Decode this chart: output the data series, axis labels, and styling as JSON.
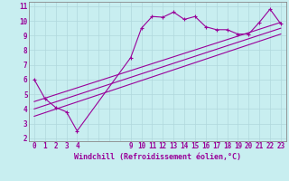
{
  "xlabel": "Windchill (Refroidissement éolien,°C)",
  "bg_color": "#c8eef0",
  "line_color": "#990099",
  "grid_color": "#b0d8dc",
  "xlim": [
    -0.5,
    23.5
  ],
  "ylim": [
    1.8,
    11.3
  ],
  "xticks": [
    0,
    1,
    2,
    3,
    4,
    9,
    10,
    11,
    12,
    13,
    14,
    15,
    16,
    17,
    18,
    19,
    20,
    21,
    22,
    23
  ],
  "yticks": [
    2,
    3,
    4,
    5,
    6,
    7,
    8,
    9,
    10,
    11
  ],
  "data_x": [
    0,
    1,
    2,
    3,
    4,
    9,
    10,
    11,
    12,
    13,
    14,
    15,
    16,
    17,
    18,
    19,
    20,
    21,
    22,
    23
  ],
  "data_y": [
    6.0,
    4.7,
    4.1,
    3.8,
    2.5,
    7.5,
    9.5,
    10.3,
    10.25,
    10.6,
    10.1,
    10.3,
    9.6,
    9.4,
    9.4,
    9.1,
    9.1,
    9.9,
    10.8,
    9.8
  ],
  "line1_x": [
    0,
    23
  ],
  "line1_y": [
    3.5,
    9.1
  ],
  "line2_x": [
    0,
    23
  ],
  "line2_y": [
    4.0,
    9.5
  ],
  "line3_x": [
    0,
    23
  ],
  "line3_y": [
    4.5,
    9.9
  ],
  "tick_fontsize": 5.5,
  "xlabel_fontsize": 6.0
}
